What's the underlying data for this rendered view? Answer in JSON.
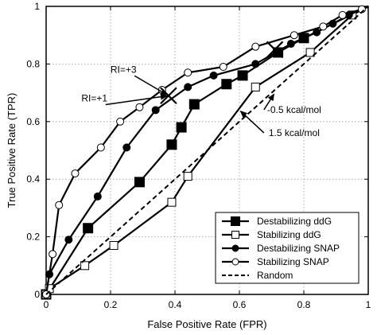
{
  "chart_data": {
    "type": "line",
    "title": "",
    "xlabel": "False Positive Rate (FPR)",
    "ylabel": "True Positive Rate (TPR)",
    "xlim": [
      0,
      1
    ],
    "ylim": [
      0,
      1
    ],
    "xticks": [
      "0",
      "0.2",
      "0.4",
      "0.6",
      "0.8",
      "1"
    ],
    "yticks": [
      "0",
      "0.2",
      "0.4",
      "0.6",
      "0.8",
      "1"
    ],
    "grid": true,
    "legend": "bottom-right",
    "series": [
      {
        "name": "Destabilizing ddG",
        "marker": "filled-square",
        "x": [
          0,
          0.13,
          0.29,
          0.39,
          0.42,
          0.46,
          0.56,
          0.61,
          0.72,
          0.8,
          1.0
        ],
        "y": [
          0,
          0.23,
          0.39,
          0.52,
          0.58,
          0.66,
          0.73,
          0.76,
          0.84,
          0.89,
          1.0
        ]
      },
      {
        "name": "Stabilizing ddG",
        "marker": "open-square",
        "x": [
          0,
          0.01,
          0.12,
          0.21,
          0.39,
          0.44,
          0.65,
          0.82,
          0.95,
          1.0
        ],
        "y": [
          0,
          0.02,
          0.1,
          0.17,
          0.32,
          0.41,
          0.72,
          0.84,
          0.97,
          1.0
        ]
      },
      {
        "name": "Destabilizing SNAP",
        "marker": "filled-circle",
        "x": [
          0,
          0.01,
          0.07,
          0.16,
          0.25,
          0.34,
          0.44,
          0.52,
          0.65,
          0.76,
          0.84,
          0.89,
          0.94,
          1.0
        ],
        "y": [
          0,
          0.07,
          0.19,
          0.34,
          0.51,
          0.64,
          0.72,
          0.76,
          0.8,
          0.87,
          0.91,
          0.94,
          0.97,
          1.0
        ]
      },
      {
        "name": "Stabilizing SNAP",
        "marker": "open-circle",
        "x": [
          0,
          0.02,
          0.04,
          0.09,
          0.17,
          0.23,
          0.29,
          0.36,
          0.44,
          0.55,
          0.65,
          0.77,
          0.86,
          0.92,
          0.98,
          1.0
        ],
        "y": [
          0,
          0.14,
          0.31,
          0.42,
          0.51,
          0.6,
          0.65,
          0.71,
          0.77,
          0.79,
          0.86,
          0.9,
          0.93,
          0.97,
          0.99,
          1.0
        ]
      },
      {
        "name": "Random",
        "marker": "none",
        "dashed": true,
        "x": [
          0,
          1
        ],
        "y": [
          0,
          1
        ]
      }
    ],
    "annotations": [
      {
        "text": "RI=+3",
        "x": 0.24,
        "y": 0.77,
        "arrow_to": [
          0.38,
          0.69
        ]
      },
      {
        "text": "RI=+1",
        "x": 0.15,
        "y": 0.67,
        "arrow_to": [
          0.38,
          0.69
        ]
      },
      {
        "text": "-0.5 kcal/mol",
        "x": 0.77,
        "y": 0.63,
        "arrow_to": [
          0.71,
          0.7
        ]
      },
      {
        "text": "1.5 kcal/mol",
        "x": 0.77,
        "y": 0.55,
        "arrow_to": [
          0.6,
          0.64
        ]
      }
    ],
    "cross_markers": [
      {
        "x": 0.38,
        "y": 0.69
      },
      {
        "x": 0.71,
        "y": 0.85
      }
    ]
  }
}
